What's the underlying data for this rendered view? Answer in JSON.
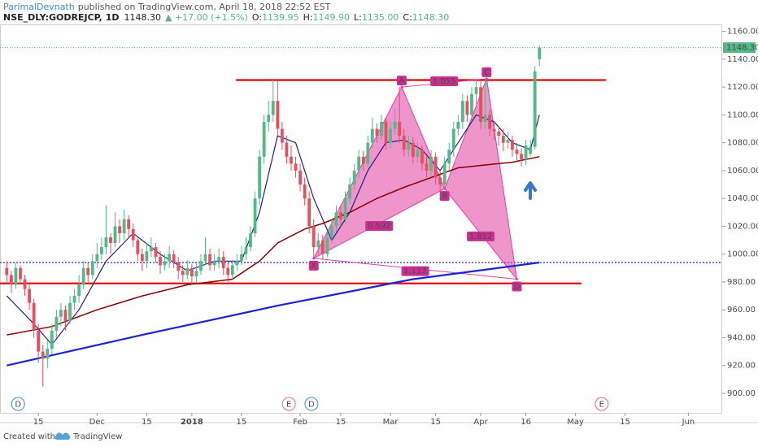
{
  "chart_data": {
    "type": "candlestick",
    "header": {
      "author": "ParimalDevnath",
      "published": "published on TradingView.com, April 18, 2018 22:52 EST",
      "symbol": "NSE_DLY:GODREJCP, 1D",
      "price": "1148.30",
      "change": "▲ +17.00 (+1.5%)",
      "ohlc_items": [
        {
          "k": "O:",
          "v": "1139.95"
        },
        {
          "k": "H:",
          "v": "1149.90"
        },
        {
          "k": "L:",
          "v": "1135.00"
        },
        {
          "k": "C:",
          "v": "1148.30"
        }
      ]
    },
    "footer": {
      "created": "Created with",
      "brand": "TradingView"
    },
    "up_color": "#53b987",
    "down_color": "#eb4d5c",
    "ohlc": [
      [
        990,
        995,
        978,
        985
      ],
      [
        985,
        988,
        972,
        978
      ],
      [
        978,
        994,
        975,
        990
      ],
      [
        990,
        992,
        978,
        982
      ],
      [
        982,
        985,
        970,
        975
      ],
      [
        975,
        978,
        960,
        965
      ],
      [
        965,
        968,
        940,
        945
      ],
      [
        945,
        950,
        922,
        930
      ],
      [
        930,
        935,
        905,
        925
      ],
      [
        925,
        938,
        918,
        932
      ],
      [
        932,
        950,
        928,
        945
      ],
      [
        945,
        960,
        940,
        955
      ],
      [
        955,
        965,
        948,
        960
      ],
      [
        960,
        963,
        945,
        952
      ],
      [
        952,
        970,
        950,
        965
      ],
      [
        965,
        975,
        960,
        970
      ],
      [
        970,
        985,
        965,
        978
      ],
      [
        978,
        995,
        975,
        990
      ],
      [
        990,
        994,
        980,
        985
      ],
      [
        985,
        1000,
        982,
        995
      ],
      [
        995,
        1008,
        990,
        1000
      ],
      [
        1000,
        1012,
        996,
        1005
      ],
      [
        1005,
        1035,
        1000,
        1012
      ],
      [
        1012,
        1015,
        1000,
        1008
      ],
      [
        1008,
        1030,
        1005,
        1020
      ],
      [
        1020,
        1025,
        1008,
        1015
      ],
      [
        1015,
        1032,
        1010,
        1025
      ],
      [
        1025,
        1028,
        1012,
        1018
      ],
      [
        1018,
        1022,
        1005,
        1010
      ],
      [
        1010,
        1013,
        995,
        1000
      ],
      [
        1000,
        1004,
        988,
        995
      ],
      [
        995,
        1008,
        990,
        1002
      ],
      [
        1002,
        1012,
        998,
        1005
      ],
      [
        1005,
        1008,
        994,
        998
      ],
      [
        998,
        1002,
        986,
        992
      ],
      [
        992,
        1000,
        988,
        995
      ],
      [
        995,
        1006,
        990,
        1000
      ],
      [
        1000,
        1003,
        990,
        994
      ],
      [
        994,
        998,
        982,
        988
      ],
      [
        988,
        992,
        980,
        985
      ],
      [
        985,
        996,
        982,
        990
      ],
      [
        990,
        993,
        978,
        984
      ],
      [
        984,
        994,
        980,
        988
      ],
      [
        988,
        1000,
        985,
        995
      ],
      [
        995,
        1012,
        992,
        1000
      ],
      [
        1000,
        1004,
        988,
        992
      ],
      [
        992,
        1000,
        988,
        995
      ],
      [
        995,
        1004,
        990,
        998
      ],
      [
        998,
        1002,
        985,
        990
      ],
      [
        990,
        994,
        980,
        985
      ],
      [
        985,
        996,
        982,
        992
      ],
      [
        992,
        1000,
        988,
        995
      ],
      [
        995,
        1006,
        992,
        1000
      ],
      [
        1000,
        1012,
        996,
        1005
      ],
      [
        1005,
        1020,
        1002,
        1015
      ],
      [
        1015,
        1045,
        1012,
        1040
      ],
      [
        1040,
        1075,
        1035,
        1070
      ],
      [
        1070,
        1100,
        1065,
        1095
      ],
      [
        1095,
        1110,
        1088,
        1100
      ],
      [
        1100,
        1126,
        1095,
        1110
      ],
      [
        1110,
        1125,
        1085,
        1090
      ],
      [
        1090,
        1095,
        1075,
        1080
      ],
      [
        1080,
        1085,
        1065,
        1070
      ],
      [
        1070,
        1078,
        1060,
        1065
      ],
      [
        1065,
        1070,
        1055,
        1060
      ],
      [
        1060,
        1065,
        1045,
        1050
      ],
      [
        1050,
        1055,
        1035,
        1040
      ],
      [
        1040,
        1045,
        1015,
        1020
      ],
      [
        1020,
        1025,
        997,
        1005
      ],
      [
        1005,
        1015,
        1000,
        1010
      ],
      [
        1010,
        1014,
        996,
        1000
      ],
      [
        1000,
        1016,
        998,
        1012
      ],
      [
        1012,
        1025,
        1008,
        1020
      ],
      [
        1020,
        1035,
        1016,
        1030
      ],
      [
        1030,
        1034,
        1020,
        1025
      ],
      [
        1025,
        1045,
        1022,
        1040
      ],
      [
        1040,
        1055,
        1036,
        1050
      ],
      [
        1050,
        1065,
        1046,
        1060
      ],
      [
        1060,
        1075,
        1055,
        1070
      ],
      [
        1070,
        1074,
        1060,
        1065
      ],
      [
        1065,
        1085,
        1062,
        1080
      ],
      [
        1080,
        1098,
        1076,
        1090
      ],
      [
        1090,
        1094,
        1080,
        1085
      ],
      [
        1085,
        1100,
        1082,
        1095
      ],
      [
        1095,
        1098,
        1075,
        1080
      ],
      [
        1080,
        1095,
        1076,
        1090
      ],
      [
        1090,
        1105,
        1086,
        1095
      ],
      [
        1095,
        1120,
        1080,
        1085
      ],
      [
        1085,
        1090,
        1070,
        1075
      ],
      [
        1075,
        1085,
        1070,
        1080
      ],
      [
        1080,
        1084,
        1065,
        1070
      ],
      [
        1070,
        1080,
        1066,
        1075
      ],
      [
        1075,
        1078,
        1060,
        1065
      ],
      [
        1065,
        1070,
        1055,
        1060
      ],
      [
        1060,
        1075,
        1056,
        1070
      ],
      [
        1070,
        1073,
        1050,
        1055
      ],
      [
        1055,
        1060,
        1045,
        1050
      ],
      [
        1050,
        1070,
        1047,
        1065
      ],
      [
        1065,
        1080,
        1060,
        1075
      ],
      [
        1075,
        1095,
        1070,
        1090
      ],
      [
        1090,
        1100,
        1085,
        1095
      ],
      [
        1095,
        1115,
        1090,
        1110
      ],
      [
        1110,
        1114,
        1095,
        1100
      ],
      [
        1100,
        1120,
        1096,
        1115
      ],
      [
        1115,
        1126,
        1108,
        1120
      ],
      [
        1120,
        1124,
        1090,
        1095
      ],
      [
        1095,
        1126,
        1090,
        1100
      ],
      [
        1100,
        1104,
        1085,
        1090
      ],
      [
        1090,
        1095,
        1082,
        1088
      ],
      [
        1088,
        1092,
        1078,
        1085
      ],
      [
        1085,
        1090,
        1074,
        1080
      ],
      [
        1080,
        1088,
        1076,
        1082
      ],
      [
        1082,
        1085,
        1070,
        1075
      ],
      [
        1075,
        1080,
        1066,
        1072
      ],
      [
        1072,
        1076,
        1063,
        1068
      ],
      [
        1068,
        1082,
        1064,
        1078
      ],
      [
        1072,
        1082,
        1070,
        1077
      ],
      [
        1077,
        1135,
        1075,
        1131.3
      ],
      [
        1139.95,
        1149.9,
        1135,
        1148.3
      ]
    ],
    "last_price_label": "1148.30",
    "lines": [
      {
        "color": "#1c1f8c",
        "width": 1.2,
        "x": [
          0,
          6,
          10,
          16,
          22,
          28,
          34,
          40,
          46,
          52,
          56,
          60,
          64,
          68,
          72,
          76,
          80,
          84,
          88,
          92,
          96,
          100,
          104,
          108,
          112,
          116,
          118
        ],
        "values": [
          970,
          950,
          935,
          960,
          995,
          1015,
          1000,
          988,
          995,
          995,
          1030,
          1085,
          1080,
          1040,
          1010,
          1030,
          1060,
          1080,
          1082,
          1075,
          1060,
          1080,
          1100,
          1095,
          1080,
          1075,
          1100
        ]
      },
      {
        "color": "#8b0000",
        "width": 1.5,
        "x": [
          0,
          10,
          20,
          30,
          40,
          50,
          56,
          60,
          66,
          70,
          76,
          82,
          88,
          94,
          100,
          106,
          112,
          118
        ],
        "values": [
          942,
          948,
          960,
          970,
          978,
          982,
          995,
          1008,
          1018,
          1022,
          1030,
          1040,
          1048,
          1055,
          1062,
          1064,
          1066,
          1070
        ]
      },
      {
        "color": "#1a24d6",
        "width": 2.2,
        "x": [
          0,
          30,
          60,
          90,
          118
        ],
        "values": [
          920,
          942,
          963,
          982,
          994
        ]
      }
    ],
    "hlines": [
      {
        "value": 1125,
        "color": "#e00000",
        "style": "solid"
      },
      {
        "value": 979,
        "color": "#e00000",
        "style": "solid"
      },
      {
        "value": 994,
        "color": "#2424d8",
        "style": "dotted"
      }
    ],
    "pattern": {
      "color": "#e040a0",
      "points": [
        {
          "label": "X",
          "x": 68,
          "price": 997
        },
        {
          "label": "A",
          "x": 87.5,
          "price": 1120
        },
        {
          "label": "B",
          "x": 97,
          "price": 1047
        },
        {
          "label": "C",
          "x": 106.3,
          "price": 1126
        },
        {
          "label": "D",
          "x": 113,
          "price": 982
        }
      ],
      "ratios": [
        "0.592",
        "1.055",
        "1.812",
        "1.112"
      ]
    },
    "events": [
      "D",
      "E",
      "D",
      "E"
    ],
    "xlim": [
      -1.5,
      158.5
    ],
    "xticks": [
      {
        "value": 7,
        "label": "15"
      },
      {
        "value": 20,
        "label": "Dec"
      },
      {
        "value": 31,
        "label": "15"
      },
      {
        "value": 41,
        "label": "2018"
      },
      {
        "value": 52,
        "label": "15"
      },
      {
        "value": 65,
        "label": "Feb"
      },
      {
        "value": 74,
        "label": "15"
      },
      {
        "value": 85,
        "label": "Mar"
      },
      {
        "value": 95,
        "label": "15"
      },
      {
        "value": 105,
        "label": "Apr"
      },
      {
        "value": 115,
        "label": "16"
      },
      {
        "value": 126,
        "label": "May"
      },
      {
        "value": 137,
        "label": "15"
      },
      {
        "value": 151,
        "label": "Jun"
      }
    ],
    "ylim": [
      886,
      1165
    ],
    "yticks": [
      {
        "value": 900,
        "label": "900.00"
      },
      {
        "value": 920,
        "label": "920.00"
      },
      {
        "value": 940,
        "label": "940.00"
      },
      {
        "value": 960,
        "label": "960.00"
      },
      {
        "value": 980,
        "label": "980.00"
      },
      {
        "value": 1000,
        "label": "1000.00"
      },
      {
        "value": 1020,
        "label": "1020.00"
      },
      {
        "value": 1040,
        "label": "1040.00"
      },
      {
        "value": 1060,
        "label": "1060.00"
      },
      {
        "value": 1080,
        "label": "1080.00"
      },
      {
        "value": 1100,
        "label": "1100.00"
      },
      {
        "value": 1120,
        "label": "1120.00"
      },
      {
        "value": 1140,
        "label": "1140.00"
      },
      {
        "value": 1160,
        "label": "1160.00"
      }
    ]
  }
}
